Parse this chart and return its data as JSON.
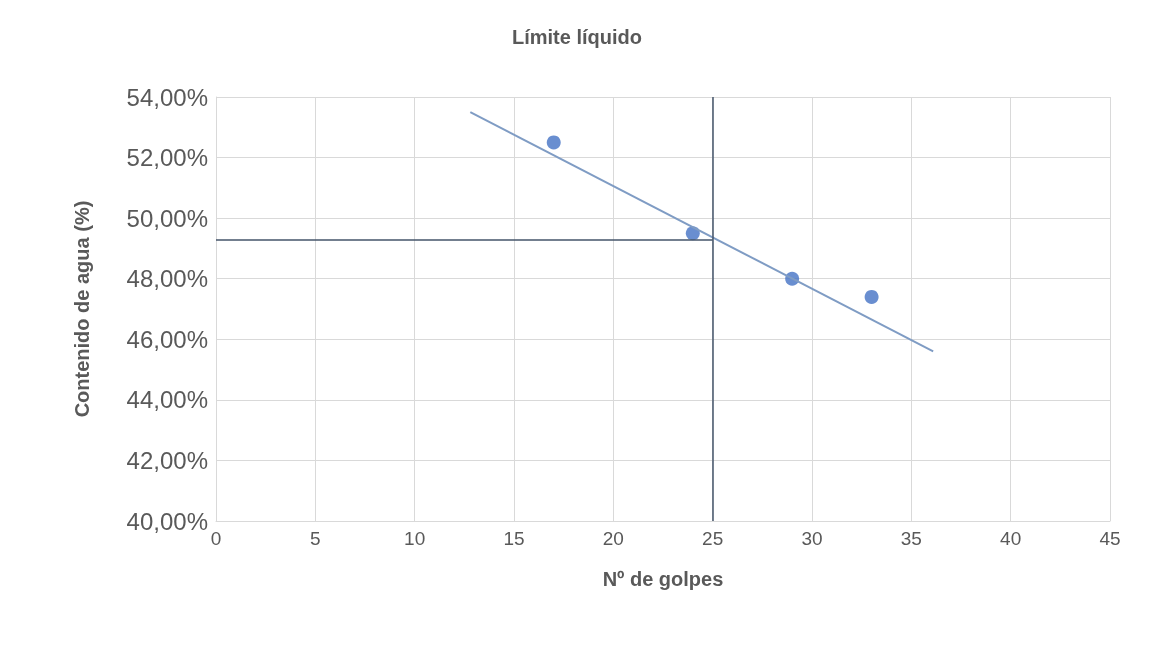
{
  "chart_data": {
    "type": "scatter",
    "title": "Límite líquido",
    "xlabel": "Nº de golpes",
    "ylabel": "Contenido de agua (%)",
    "series": [
      {
        "color": "#4472c4",
        "x": [
          17,
          24,
          29,
          33
        ],
        "values": [
          52.5,
          49.5,
          48.0,
          47.4
        ]
      },
      {
        "type": "line",
        "marker": "none",
        "color": "#7f9cc4",
        "x": [
          12.8,
          36.1
        ],
        "values": [
          53.5,
          45.6
        ]
      }
    ],
    "xlim": [
      0,
      45
    ],
    "xticks": [
      0,
      5,
      10,
      15,
      20,
      25,
      30,
      35,
      40,
      45
    ],
    "ylim": [
      40,
      54
    ],
    "yticks": [
      {
        "value": 40,
        "label": "40,00%"
      },
      {
        "value": 42,
        "label": "42,00%"
      },
      {
        "value": 44,
        "label": "44,00%"
      },
      {
        "value": 46,
        "label": "46,00%"
      },
      {
        "value": 48,
        "label": "48,00%"
      },
      {
        "value": 50,
        "label": "50,00%"
      },
      {
        "value": 52,
        "label": "52,00%"
      },
      {
        "value": 54,
        "label": "54,00%"
      }
    ],
    "ref_lines": [
      {
        "axis": "x",
        "value": 25,
        "color": "#44546a"
      },
      {
        "axis": "y",
        "value": 49.3,
        "color": "#44546a"
      }
    ],
    "grid": true,
    "marker": "circle"
  }
}
